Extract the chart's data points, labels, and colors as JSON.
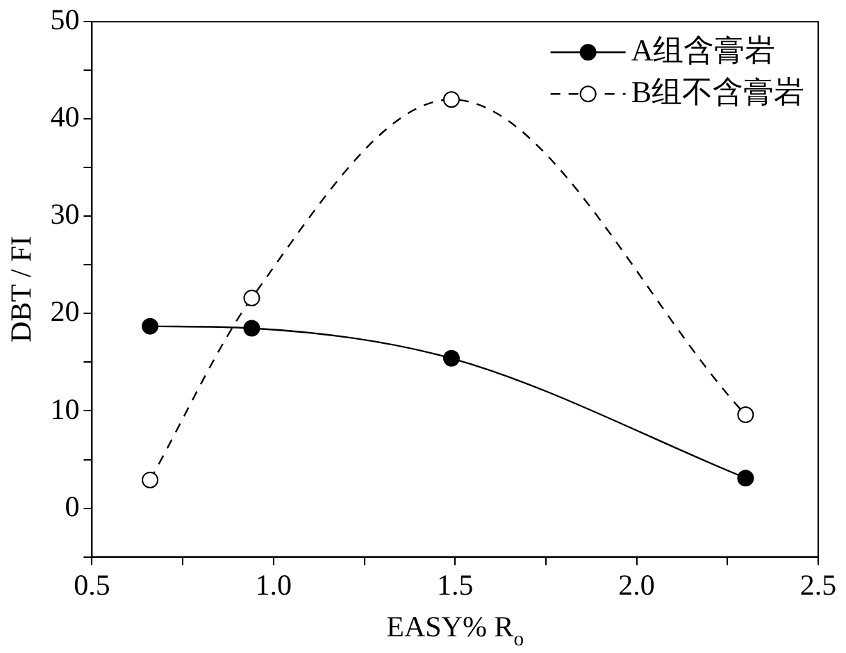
{
  "chart_data": {
    "type": "line",
    "xlabel": "EASY% R$_{o}$",
    "ylabel": "DBT / FI",
    "xlim": [
      0.5,
      2.5
    ],
    "xticks": [
      {
        "value": 0.5,
        "label": "0.5"
      },
      {
        "value": 0.75,
        "label": null
      },
      {
        "value": 1,
        "label": "1.0"
      },
      {
        "value": 1.25,
        "label": null
      },
      {
        "value": 1.5,
        "label": "1.5"
      },
      {
        "value": 1.75,
        "label": null
      },
      {
        "value": 2,
        "label": "2.0"
      },
      {
        "value": 2.25,
        "label": null
      },
      {
        "value": 2.5,
        "label": "2.5"
      }
    ],
    "ylim": [
      -5,
      50
    ],
    "yticks": [
      {
        "value": -5,
        "label": null
      },
      0,
      {
        "value": 5,
        "label": null
      },
      10,
      {
        "value": 15,
        "label": null
      },
      20,
      {
        "value": 25,
        "label": null
      },
      30,
      {
        "value": 35,
        "label": null
      },
      40,
      {
        "value": 45,
        "label": null
      },
      50
    ],
    "legend": "top right",
    "marker": "circle",
    "series": [
      {
        "name": "A组含膏岩",
        "color": "#000000",
        "line_style": "solid",
        "x": [
          0.66,
          0.94,
          1.49,
          2.3
        ],
        "values": [
          18.7,
          18.5,
          15.4,
          3.1
        ]
      },
      {
        "name": "B组不含膏岩",
        "color": "#000000",
        "line_style": "dashed",
        "x": [
          0.66,
          0.94,
          1.49,
          2.3
        ],
        "values": [
          2.9,
          21.6,
          42,
          9.6
        ]
      }
    ]
  }
}
